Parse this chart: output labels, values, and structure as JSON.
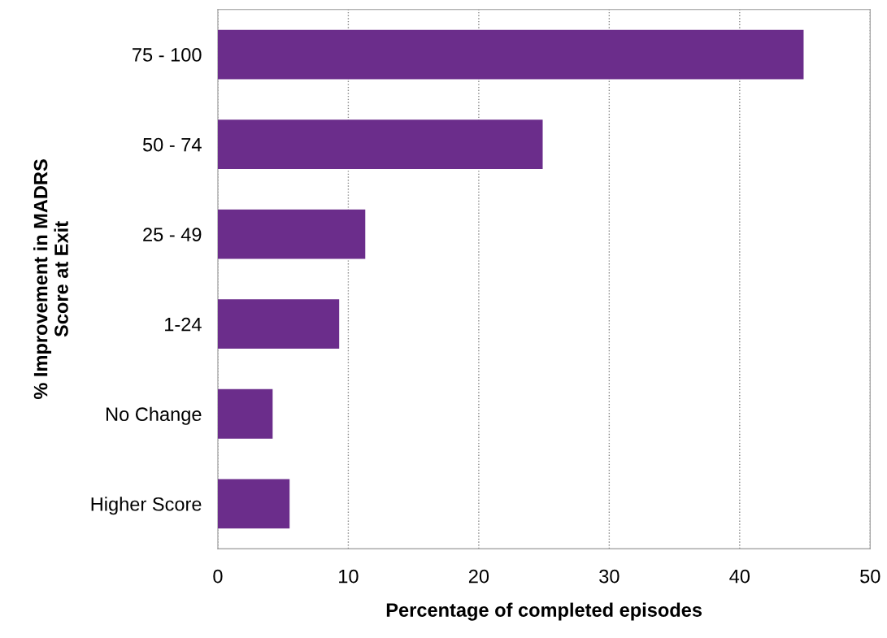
{
  "chart_data": {
    "type": "bar",
    "orientation": "horizontal",
    "categories": [
      "75 - 100",
      "50 - 74",
      "25 - 49",
      "1-24",
      "No Change",
      "Higher Score"
    ],
    "values": [
      44.9,
      24.9,
      11.3,
      9.3,
      4.2,
      5.5
    ],
    "color": "#6b2d8b",
    "xlim": [
      0,
      50
    ],
    "xticks": [
      0,
      10,
      20,
      30,
      40,
      50
    ],
    "xlabel": "Percentage of completed episodes",
    "ylabel": "% Improvement in MADRS\nScore at Exit",
    "grid": "x",
    "legend": false
  }
}
